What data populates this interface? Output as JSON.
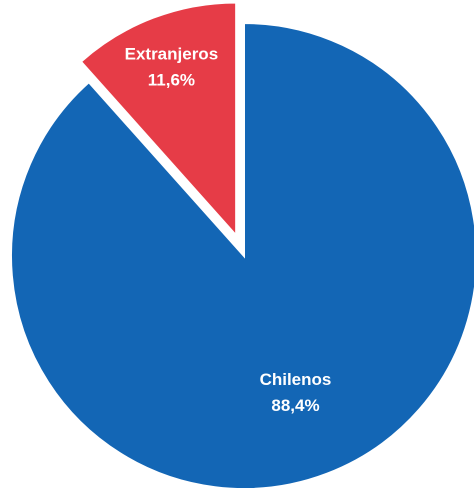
{
  "chart_data": {
    "type": "pie",
    "categories": [
      "Chilenos",
      "Extranjeros"
    ],
    "values": [
      88.4,
      11.6
    ],
    "value_labels": [
      "88,4%",
      "11,6%"
    ],
    "colors": [
      "#1366b5",
      "#e63c47"
    ],
    "exploded": [
      "Extranjeros"
    ],
    "start_angle_deg": 0,
    "direction": "clockwise",
    "legend": "none"
  }
}
